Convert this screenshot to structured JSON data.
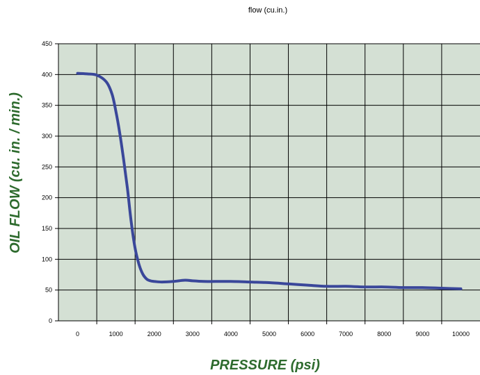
{
  "chart_data": {
    "type": "line",
    "title": "flow (cu.in.)",
    "xlabel": "PRESSURE (psi)",
    "ylabel": "OIL FLOW (cu. in. / min.)",
    "x_ticks": [
      "0",
      "1000",
      "2000",
      "3000",
      "4000",
      "5000",
      "6000",
      "7000",
      "8000",
      "9000",
      "10000"
    ],
    "y_ticks": [
      "0",
      "50",
      "100",
      "150",
      "200",
      "250",
      "300",
      "350",
      "400",
      "450"
    ],
    "xlim": [
      -500,
      10500
    ],
    "ylim": [
      0,
      450
    ],
    "grid": true,
    "colors": {
      "plot_background": "#d4e0d4",
      "grid": "#000000",
      "line": "#3a479a",
      "axis_title": "#2e6b2e"
    },
    "series": [
      {
        "x": [
          0,
          250,
          500,
          750,
          900,
          1000,
          1100,
          1200,
          1300,
          1400,
          1500,
          1600,
          1700,
          1800,
          1900,
          2000,
          2200,
          2500,
          2800,
          3000,
          3300,
          3600,
          4000,
          4500,
          5000,
          5500,
          6000,
          6500,
          7000,
          7500,
          8000,
          8500,
          9000,
          9500,
          10000
        ],
        "y": [
          402,
          401,
          399,
          388,
          368,
          340,
          305,
          262,
          215,
          160,
          118,
          92,
          76,
          68,
          65,
          64,
          63,
          64,
          66,
          65,
          64,
          64,
          64,
          63,
          62,
          60,
          58,
          56,
          56,
          55,
          55,
          54,
          54,
          53,
          52
        ]
      }
    ]
  }
}
